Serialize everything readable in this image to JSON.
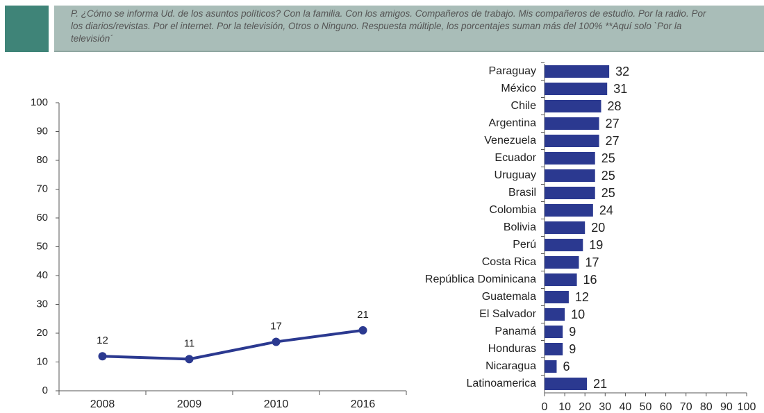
{
  "header": {
    "text": "P. ¿Cómo se informa Ud. de los asuntos políticos? Con la familia. Con los amigos. Compañeros de trabajo. Mis compañeros de estudio. Por la radio. Por los diarios/revistas. Por el internet. Por la televisión, Otros o Ninguno. Respuesta múltiple, los porcentajes suman más del 100% **Aquí solo `Por la televisión´"
  },
  "chart_data": [
    {
      "type": "line",
      "categories": [
        "2008",
        "2009",
        "2010",
        "2016"
      ],
      "values": [
        12,
        11,
        17,
        21
      ],
      "color": "#2b3990",
      "ylim": [
        0,
        100
      ],
      "yticks": [
        0,
        10,
        20,
        30,
        40,
        50,
        60,
        70,
        80,
        90,
        100
      ],
      "grid": false
    },
    {
      "type": "hbar",
      "categories": [
        "Paraguay",
        "México",
        "Chile",
        "Argentina",
        "Venezuela",
        "Ecuador",
        "Uruguay",
        "Brasil",
        "Colombia",
        "Bolivia",
        "Perú",
        "Costa Rica",
        "República Dominicana",
        "Guatemala",
        "El Salvador",
        "Panamá",
        "Honduras",
        "Nicaragua",
        "Latinoamerica"
      ],
      "values": [
        32,
        31,
        28,
        27,
        27,
        25,
        25,
        25,
        24,
        20,
        19,
        17,
        16,
        12,
        10,
        9,
        9,
        6,
        21
      ],
      "color": "#2b3990",
      "xlim": [
        0,
        100
      ],
      "xticks": [
        0,
        10,
        20,
        30,
        40,
        50,
        60,
        70,
        80,
        90,
        100
      ],
      "grid": false
    }
  ]
}
